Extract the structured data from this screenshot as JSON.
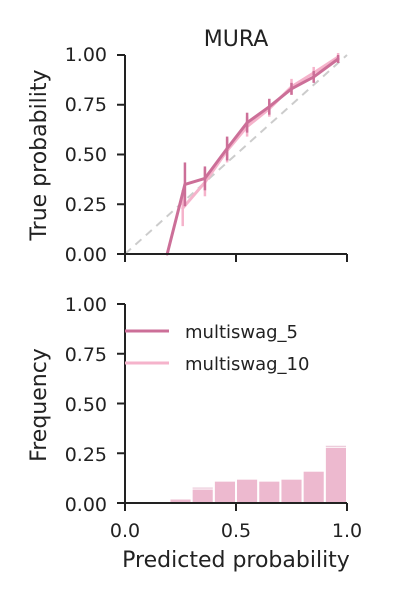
{
  "chart_data": [
    {
      "type": "line",
      "title": "MURA",
      "xlabel": "",
      "ylabel": "True probability",
      "xlim": [
        0,
        1
      ],
      "ylim": [
        0,
        1
      ],
      "xticks": [
        0.0,
        0.5,
        1.0
      ],
      "yticks": [
        "0.00",
        "0.25",
        "0.50",
        "0.75",
        "1.00"
      ],
      "show_x_tick_labels": false,
      "grid": false,
      "reference_line": {
        "x": [
          0,
          1
        ],
        "y": [
          0,
          1
        ],
        "style": "dashed",
        "color": "#cccccc"
      },
      "series": [
        {
          "name": "multiswag_5",
          "color": "#cc6f98",
          "x": [
            0.19,
            0.27,
            0.36,
            0.46,
            0.55,
            0.65,
            0.75,
            0.85,
            0.96
          ],
          "y": [
            0.0,
            0.35,
            0.38,
            0.53,
            0.66,
            0.74,
            0.83,
            0.89,
            0.98
          ],
          "err": [
            0.0,
            0.11,
            0.06,
            0.06,
            0.05,
            0.04,
            0.03,
            0.03,
            0.02
          ]
        },
        {
          "name": "multiswag_10",
          "color": "#f5b3cb",
          "x": [
            0.26,
            0.36,
            0.46,
            0.55,
            0.65,
            0.75,
            0.85,
            0.96
          ],
          "y": [
            0.23,
            0.36,
            0.52,
            0.64,
            0.73,
            0.84,
            0.91,
            0.99
          ],
          "err": [
            0.09,
            0.07,
            0.06,
            0.05,
            0.04,
            0.04,
            0.03,
            0.02
          ]
        }
      ]
    },
    {
      "type": "bar",
      "title": "",
      "xlabel": "Predicted probability",
      "ylabel": "Frequency",
      "xlim": [
        0,
        1
      ],
      "ylim": [
        0,
        1
      ],
      "xticks": [
        "0.0",
        "0.5",
        "1.0"
      ],
      "yticks": [
        "0.00",
        "0.25",
        "0.50",
        "0.75",
        "1.00"
      ],
      "grid": false,
      "bin_width": 0.1,
      "legend_position": "upper-left",
      "legend": [
        {
          "label": "multiswag_5",
          "color": "#cc6f98"
        },
        {
          "label": "multiswag_10",
          "color": "#f5b3cb"
        }
      ],
      "series": [
        {
          "name": "multiswag_5",
          "color": "#cc6f98",
          "bin_left": [
            0.2,
            0.3,
            0.4,
            0.5,
            0.6,
            0.7,
            0.8,
            0.9
          ],
          "values": [
            0.02,
            0.08,
            0.11,
            0.12,
            0.11,
            0.12,
            0.16,
            0.29
          ]
        },
        {
          "name": "multiswag_10",
          "color": "#f5b3cb",
          "bin_left": [
            0.2,
            0.3,
            0.4,
            0.5,
            0.6,
            0.7,
            0.8,
            0.9
          ],
          "values": [
            0.02,
            0.07,
            0.11,
            0.12,
            0.11,
            0.12,
            0.16,
            0.28
          ]
        }
      ]
    }
  ]
}
